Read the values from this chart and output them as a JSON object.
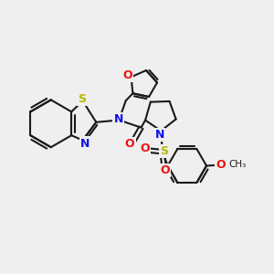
{
  "background_color": "#efefef",
  "bond_color": "#1a1a1a",
  "atom_colors": {
    "N": "#1010ee",
    "O": "#ee1010",
    "S": "#b8b800",
    "C": "#1a1a1a"
  },
  "figsize": [
    3.0,
    3.0
  ],
  "dpi": 100
}
